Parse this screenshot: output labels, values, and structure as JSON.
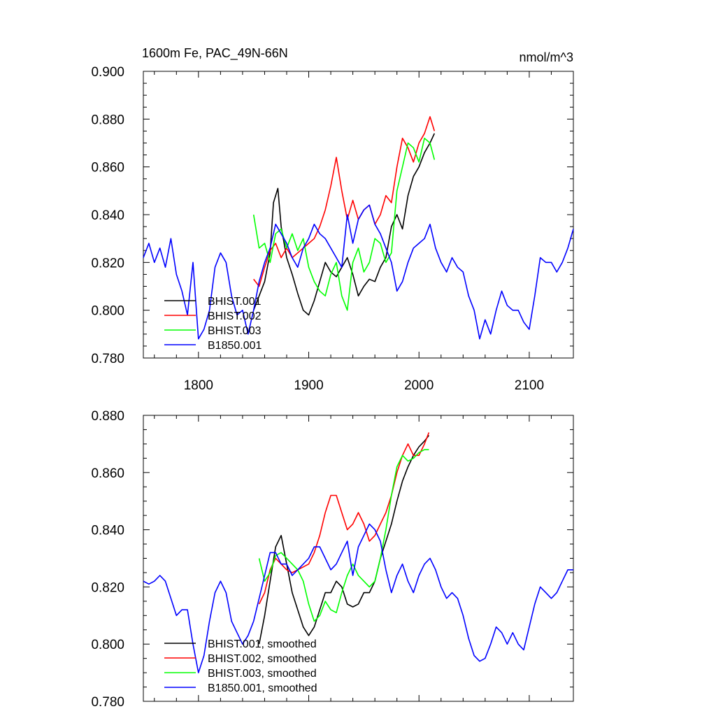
{
  "chart_data": [
    {
      "type": "line",
      "title_left": "1600m Fe, PAC_49N-66N",
      "title_right": "nmol/m^3",
      "xlim": [
        1750,
        2140
      ],
      "ylim": [
        0.78,
        0.9
      ],
      "xticks": [
        1800,
        1900,
        2000,
        2100
      ],
      "xtick_labels": [
        "1800",
        "1900",
        "2000",
        "2100"
      ],
      "yticks": [
        0.78,
        0.8,
        0.82,
        0.84,
        0.86,
        0.88,
        0.9
      ],
      "ytick_labels": [
        "0.780",
        "0.800",
        "0.820",
        "0.840",
        "0.860",
        "0.880",
        "0.900"
      ],
      "legend_placement": "lower-left",
      "series": [
        {
          "name": "BHIST.001",
          "color": "#000000",
          "x": [
            1850,
            1855,
            1860,
            1865,
            1868,
            1872,
            1875,
            1880,
            1885,
            1890,
            1895,
            1900,
            1905,
            1910,
            1915,
            1920,
            1925,
            1930,
            1935,
            1940,
            1945,
            1950,
            1955,
            1960,
            1965,
            1970,
            1975,
            1980,
            1985,
            1990,
            1995,
            2000,
            2005,
            2010,
            2014
          ],
          "y": [
            0.8,
            0.806,
            0.812,
            0.824,
            0.845,
            0.851,
            0.835,
            0.822,
            0.815,
            0.807,
            0.8,
            0.798,
            0.804,
            0.812,
            0.82,
            0.816,
            0.814,
            0.818,
            0.822,
            0.815,
            0.806,
            0.81,
            0.813,
            0.812,
            0.818,
            0.822,
            0.835,
            0.84,
            0.834,
            0.848,
            0.856,
            0.86,
            0.866,
            0.87,
            0.874
          ]
        },
        {
          "name": "BHIST.002",
          "color": "#ff0000",
          "x": [
            1850,
            1855,
            1860,
            1865,
            1870,
            1875,
            1880,
            1885,
            1890,
            1895,
            1900,
            1905,
            1910,
            1915,
            1920,
            1925,
            1930,
            1935,
            1940,
            1945,
            1950,
            1955,
            1960,
            1965,
            1970,
            1975,
            1980,
            1985,
            1990,
            1995,
            2000,
            2005,
            2010,
            2014
          ],
          "y": [
            0.813,
            0.81,
            0.818,
            0.825,
            0.828,
            0.822,
            0.826,
            0.822,
            0.824,
            0.826,
            0.828,
            0.83,
            0.835,
            0.842,
            0.852,
            0.864,
            0.85,
            0.838,
            0.846,
            0.838,
            0.842,
            0.844,
            0.836,
            0.84,
            0.848,
            0.845,
            0.86,
            0.872,
            0.868,
            0.862,
            0.87,
            0.874,
            0.881,
            0.875
          ]
        },
        {
          "name": "BHIST.003",
          "color": "#00ff00",
          "x": [
            1850,
            1855,
            1860,
            1865,
            1870,
            1875,
            1880,
            1885,
            1890,
            1895,
            1900,
            1905,
            1910,
            1915,
            1920,
            1925,
            1930,
            1935,
            1940,
            1945,
            1950,
            1955,
            1960,
            1965,
            1970,
            1975,
            1980,
            1985,
            1990,
            1995,
            2000,
            2005,
            2010,
            2014
          ],
          "y": [
            0.84,
            0.826,
            0.828,
            0.82,
            0.832,
            0.834,
            0.826,
            0.832,
            0.825,
            0.83,
            0.818,
            0.812,
            0.808,
            0.806,
            0.815,
            0.82,
            0.806,
            0.8,
            0.82,
            0.826,
            0.816,
            0.82,
            0.83,
            0.828,
            0.82,
            0.824,
            0.85,
            0.86,
            0.87,
            0.868,
            0.862,
            0.872,
            0.87,
            0.863
          ]
        },
        {
          "name": "B1850.001",
          "color": "#0000ff",
          "x": [
            1750,
            1755,
            1760,
            1765,
            1770,
            1775,
            1780,
            1785,
            1790,
            1795,
            1800,
            1805,
            1810,
            1815,
            1820,
            1825,
            1830,
            1835,
            1840,
            1845,
            1850,
            1855,
            1860,
            1865,
            1870,
            1875,
            1880,
            1885,
            1890,
            1895,
            1900,
            1905,
            1910,
            1915,
            1920,
            1925,
            1930,
            1935,
            1940,
            1945,
            1950,
            1955,
            1960,
            1965,
            1970,
            1975,
            1980,
            1985,
            1990,
            1995,
            2000,
            2005,
            2010,
            2015,
            2020,
            2025,
            2030,
            2035,
            2040,
            2045,
            2050,
            2055,
            2060,
            2065,
            2070,
            2075,
            2080,
            2085,
            2090,
            2095,
            2100,
            2105,
            2110,
            2115,
            2120,
            2125,
            2130,
            2135,
            2140
          ],
          "y": [
            0.822,
            0.828,
            0.82,
            0.826,
            0.818,
            0.83,
            0.815,
            0.808,
            0.798,
            0.82,
            0.788,
            0.792,
            0.8,
            0.818,
            0.824,
            0.82,
            0.806,
            0.798,
            0.8,
            0.79,
            0.8,
            0.812,
            0.82,
            0.826,
            0.836,
            0.832,
            0.828,
            0.822,
            0.818,
            0.826,
            0.83,
            0.836,
            0.832,
            0.83,
            0.826,
            0.822,
            0.818,
            0.84,
            0.828,
            0.838,
            0.842,
            0.844,
            0.836,
            0.832,
            0.826,
            0.82,
            0.808,
            0.812,
            0.82,
            0.826,
            0.828,
            0.83,
            0.836,
            0.826,
            0.82,
            0.816,
            0.822,
            0.818,
            0.816,
            0.806,
            0.8,
            0.788,
            0.796,
            0.79,
            0.8,
            0.808,
            0.802,
            0.8,
            0.8,
            0.795,
            0.792,
            0.806,
            0.822,
            0.82,
            0.82,
            0.816,
            0.82,
            0.826,
            0.834
          ]
        }
      ]
    },
    {
      "type": "line",
      "xlim": [
        1750,
        2140
      ],
      "ylim": [
        0.78,
        0.88
      ],
      "xticks": [
        1800,
        1900,
        2000,
        2100
      ],
      "yticks": [
        0.78,
        0.8,
        0.82,
        0.84,
        0.86,
        0.88
      ],
      "ytick_labels": [
        "0.780",
        "0.800",
        "0.820",
        "0.840",
        "0.860",
        "0.880"
      ],
      "legend_placement": "lower-left",
      "series": [
        {
          "name": "BHIST.001, smoothed",
          "color": "#000000",
          "x": [
            1855,
            1860,
            1865,
            1870,
            1875,
            1880,
            1885,
            1890,
            1895,
            1900,
            1905,
            1910,
            1915,
            1920,
            1925,
            1930,
            1935,
            1940,
            1945,
            1950,
            1955,
            1960,
            1965,
            1970,
            1975,
            1980,
            1985,
            1990,
            1995,
            2000,
            2005,
            2009
          ],
          "y": [
            0.8,
            0.81,
            0.822,
            0.834,
            0.838,
            0.828,
            0.818,
            0.812,
            0.806,
            0.803,
            0.806,
            0.812,
            0.818,
            0.818,
            0.822,
            0.82,
            0.814,
            0.813,
            0.814,
            0.818,
            0.818,
            0.822,
            0.83,
            0.836,
            0.842,
            0.85,
            0.857,
            0.862,
            0.866,
            0.869,
            0.871,
            0.873
          ]
        },
        {
          "name": "BHIST.002, smoothed",
          "color": "#ff0000",
          "x": [
            1855,
            1860,
            1865,
            1870,
            1875,
            1880,
            1885,
            1890,
            1895,
            1900,
            1905,
            1910,
            1915,
            1920,
            1925,
            1930,
            1935,
            1940,
            1945,
            1950,
            1955,
            1960,
            1965,
            1970,
            1975,
            1980,
            1985,
            1990,
            1995,
            2000,
            2005,
            2009
          ],
          "y": [
            0.814,
            0.818,
            0.826,
            0.83,
            0.828,
            0.826,
            0.825,
            0.826,
            0.827,
            0.828,
            0.832,
            0.838,
            0.846,
            0.852,
            0.852,
            0.846,
            0.84,
            0.842,
            0.846,
            0.842,
            0.836,
            0.838,
            0.842,
            0.846,
            0.852,
            0.86,
            0.866,
            0.87,
            0.866,
            0.866,
            0.87,
            0.874
          ]
        },
        {
          "name": "BHIST.003, smoothed",
          "color": "#00ff00",
          "x": [
            1855,
            1860,
            1865,
            1870,
            1875,
            1880,
            1885,
            1890,
            1895,
            1900,
            1905,
            1910,
            1915,
            1920,
            1925,
            1930,
            1935,
            1940,
            1945,
            1950,
            1955,
            1960,
            1965,
            1970,
            1975,
            1980,
            1985,
            1990,
            1995,
            2000,
            2005,
            2009
          ],
          "y": [
            0.83,
            0.822,
            0.825,
            0.831,
            0.832,
            0.83,
            0.828,
            0.826,
            0.822,
            0.814,
            0.808,
            0.81,
            0.815,
            0.812,
            0.811,
            0.818,
            0.824,
            0.828,
            0.824,
            0.822,
            0.82,
            0.822,
            0.83,
            0.84,
            0.852,
            0.862,
            0.866,
            0.864,
            0.865,
            0.867,
            0.868,
            0.868
          ]
        },
        {
          "name": "B1850.001, smoothed",
          "color": "#0000ff",
          "x": [
            1750,
            1755,
            1760,
            1765,
            1770,
            1775,
            1780,
            1785,
            1790,
            1795,
            1800,
            1805,
            1810,
            1815,
            1820,
            1825,
            1830,
            1835,
            1840,
            1845,
            1850,
            1855,
            1860,
            1865,
            1870,
            1875,
            1880,
            1885,
            1890,
            1895,
            1900,
            1905,
            1910,
            1915,
            1920,
            1925,
            1930,
            1935,
            1940,
            1945,
            1950,
            1955,
            1960,
            1965,
            1970,
            1975,
            1980,
            1985,
            1990,
            1995,
            2000,
            2005,
            2010,
            2015,
            2020,
            2025,
            2030,
            2035,
            2040,
            2045,
            2050,
            2055,
            2060,
            2065,
            2070,
            2075,
            2080,
            2085,
            2090,
            2095,
            2100,
            2105,
            2110,
            2115,
            2120,
            2125,
            2130,
            2135,
            2140
          ],
          "y": [
            0.822,
            0.821,
            0.822,
            0.824,
            0.822,
            0.816,
            0.81,
            0.812,
            0.812,
            0.8,
            0.79,
            0.796,
            0.808,
            0.818,
            0.822,
            0.818,
            0.808,
            0.804,
            0.8,
            0.803,
            0.808,
            0.816,
            0.824,
            0.832,
            0.832,
            0.828,
            0.828,
            0.824,
            0.826,
            0.828,
            0.83,
            0.834,
            0.834,
            0.83,
            0.826,
            0.828,
            0.832,
            0.836,
            0.824,
            0.834,
            0.838,
            0.842,
            0.84,
            0.836,
            0.826,
            0.818,
            0.824,
            0.828,
            0.822,
            0.818,
            0.824,
            0.828,
            0.83,
            0.826,
            0.82,
            0.816,
            0.818,
            0.816,
            0.81,
            0.802,
            0.796,
            0.794,
            0.795,
            0.8,
            0.806,
            0.804,
            0.8,
            0.804,
            0.8,
            0.798,
            0.806,
            0.814,
            0.82,
            0.818,
            0.816,
            0.818,
            0.822,
            0.826,
            0.826
          ]
        }
      ]
    }
  ]
}
